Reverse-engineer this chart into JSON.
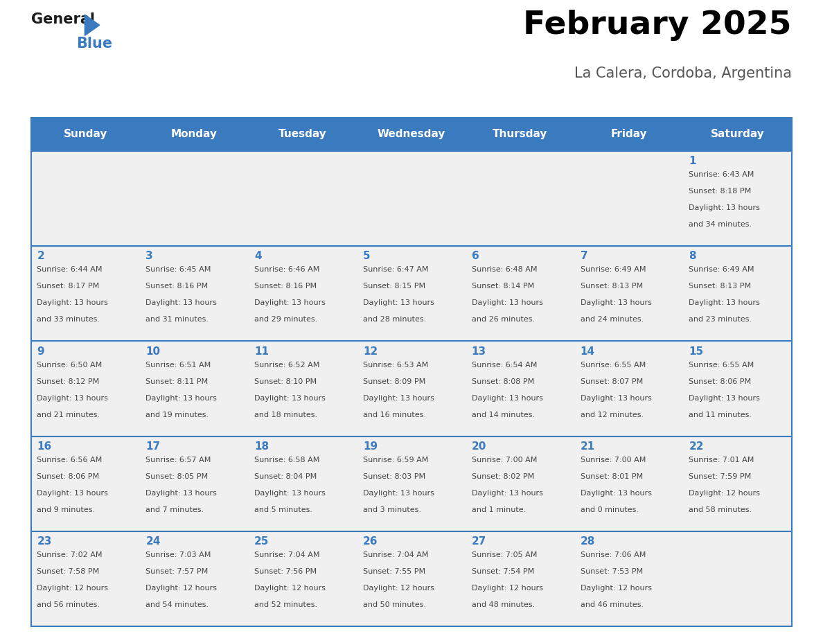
{
  "title": "February 2025",
  "subtitle": "La Calera, Cordoba, Argentina",
  "header_bg": "#3a7bbf",
  "header_text": "#ffffff",
  "day_headers": [
    "Sunday",
    "Monday",
    "Tuesday",
    "Wednesday",
    "Thursday",
    "Friday",
    "Saturday"
  ],
  "cell_bg": "#f0f0f0",
  "day_num_color": "#3a7bbf",
  "info_color": "#444444",
  "border_color": "#3a7bbf",
  "logo_general_color": "#1a1a1a",
  "logo_blue_color": "#3a7bbf",
  "days": [
    {
      "day": 1,
      "col": 6,
      "row": 0,
      "sunrise": "6:43 AM",
      "sunset": "8:18 PM",
      "dl_line1": "Daylight: 13 hours",
      "dl_line2": "and 34 minutes."
    },
    {
      "day": 2,
      "col": 0,
      "row": 1,
      "sunrise": "6:44 AM",
      "sunset": "8:17 PM",
      "dl_line1": "Daylight: 13 hours",
      "dl_line2": "and 33 minutes."
    },
    {
      "day": 3,
      "col": 1,
      "row": 1,
      "sunrise": "6:45 AM",
      "sunset": "8:16 PM",
      "dl_line1": "Daylight: 13 hours",
      "dl_line2": "and 31 minutes."
    },
    {
      "day": 4,
      "col": 2,
      "row": 1,
      "sunrise": "6:46 AM",
      "sunset": "8:16 PM",
      "dl_line1": "Daylight: 13 hours",
      "dl_line2": "and 29 minutes."
    },
    {
      "day": 5,
      "col": 3,
      "row": 1,
      "sunrise": "6:47 AM",
      "sunset": "8:15 PM",
      "dl_line1": "Daylight: 13 hours",
      "dl_line2": "and 28 minutes."
    },
    {
      "day": 6,
      "col": 4,
      "row": 1,
      "sunrise": "6:48 AM",
      "sunset": "8:14 PM",
      "dl_line1": "Daylight: 13 hours",
      "dl_line2": "and 26 minutes."
    },
    {
      "day": 7,
      "col": 5,
      "row": 1,
      "sunrise": "6:49 AM",
      "sunset": "8:13 PM",
      "dl_line1": "Daylight: 13 hours",
      "dl_line2": "and 24 minutes."
    },
    {
      "day": 8,
      "col": 6,
      "row": 1,
      "sunrise": "6:49 AM",
      "sunset": "8:13 PM",
      "dl_line1": "Daylight: 13 hours",
      "dl_line2": "and 23 minutes."
    },
    {
      "day": 9,
      "col": 0,
      "row": 2,
      "sunrise": "6:50 AM",
      "sunset": "8:12 PM",
      "dl_line1": "Daylight: 13 hours",
      "dl_line2": "and 21 minutes."
    },
    {
      "day": 10,
      "col": 1,
      "row": 2,
      "sunrise": "6:51 AM",
      "sunset": "8:11 PM",
      "dl_line1": "Daylight: 13 hours",
      "dl_line2": "and 19 minutes."
    },
    {
      "day": 11,
      "col": 2,
      "row": 2,
      "sunrise": "6:52 AM",
      "sunset": "8:10 PM",
      "dl_line1": "Daylight: 13 hours",
      "dl_line2": "and 18 minutes."
    },
    {
      "day": 12,
      "col": 3,
      "row": 2,
      "sunrise": "6:53 AM",
      "sunset": "8:09 PM",
      "dl_line1": "Daylight: 13 hours",
      "dl_line2": "and 16 minutes."
    },
    {
      "day": 13,
      "col": 4,
      "row": 2,
      "sunrise": "6:54 AM",
      "sunset": "8:08 PM",
      "dl_line1": "Daylight: 13 hours",
      "dl_line2": "and 14 minutes."
    },
    {
      "day": 14,
      "col": 5,
      "row": 2,
      "sunrise": "6:55 AM",
      "sunset": "8:07 PM",
      "dl_line1": "Daylight: 13 hours",
      "dl_line2": "and 12 minutes."
    },
    {
      "day": 15,
      "col": 6,
      "row": 2,
      "sunrise": "6:55 AM",
      "sunset": "8:06 PM",
      "dl_line1": "Daylight: 13 hours",
      "dl_line2": "and 11 minutes."
    },
    {
      "day": 16,
      "col": 0,
      "row": 3,
      "sunrise": "6:56 AM",
      "sunset": "8:06 PM",
      "dl_line1": "Daylight: 13 hours",
      "dl_line2": "and 9 minutes."
    },
    {
      "day": 17,
      "col": 1,
      "row": 3,
      "sunrise": "6:57 AM",
      "sunset": "8:05 PM",
      "dl_line1": "Daylight: 13 hours",
      "dl_line2": "and 7 minutes."
    },
    {
      "day": 18,
      "col": 2,
      "row": 3,
      "sunrise": "6:58 AM",
      "sunset": "8:04 PM",
      "dl_line1": "Daylight: 13 hours",
      "dl_line2": "and 5 minutes."
    },
    {
      "day": 19,
      "col": 3,
      "row": 3,
      "sunrise": "6:59 AM",
      "sunset": "8:03 PM",
      "dl_line1": "Daylight: 13 hours",
      "dl_line2": "and 3 minutes."
    },
    {
      "day": 20,
      "col": 4,
      "row": 3,
      "sunrise": "7:00 AM",
      "sunset": "8:02 PM",
      "dl_line1": "Daylight: 13 hours",
      "dl_line2": "and 1 minute."
    },
    {
      "day": 21,
      "col": 5,
      "row": 3,
      "sunrise": "7:00 AM",
      "sunset": "8:01 PM",
      "dl_line1": "Daylight: 13 hours",
      "dl_line2": "and 0 minutes."
    },
    {
      "day": 22,
      "col": 6,
      "row": 3,
      "sunrise": "7:01 AM",
      "sunset": "7:59 PM",
      "dl_line1": "Daylight: 12 hours",
      "dl_line2": "and 58 minutes."
    },
    {
      "day": 23,
      "col": 0,
      "row": 4,
      "sunrise": "7:02 AM",
      "sunset": "7:58 PM",
      "dl_line1": "Daylight: 12 hours",
      "dl_line2": "and 56 minutes."
    },
    {
      "day": 24,
      "col": 1,
      "row": 4,
      "sunrise": "7:03 AM",
      "sunset": "7:57 PM",
      "dl_line1": "Daylight: 12 hours",
      "dl_line2": "and 54 minutes."
    },
    {
      "day": 25,
      "col": 2,
      "row": 4,
      "sunrise": "7:04 AM",
      "sunset": "7:56 PM",
      "dl_line1": "Daylight: 12 hours",
      "dl_line2": "and 52 minutes."
    },
    {
      "day": 26,
      "col": 3,
      "row": 4,
      "sunrise": "7:04 AM",
      "sunset": "7:55 PM",
      "dl_line1": "Daylight: 12 hours",
      "dl_line2": "and 50 minutes."
    },
    {
      "day": 27,
      "col": 4,
      "row": 4,
      "sunrise": "7:05 AM",
      "sunset": "7:54 PM",
      "dl_line1": "Daylight: 12 hours",
      "dl_line2": "and 48 minutes."
    },
    {
      "day": 28,
      "col": 5,
      "row": 4,
      "sunrise": "7:06 AM",
      "sunset": "7:53 PM",
      "dl_line1": "Daylight: 12 hours",
      "dl_line2": "and 46 minutes."
    }
  ]
}
